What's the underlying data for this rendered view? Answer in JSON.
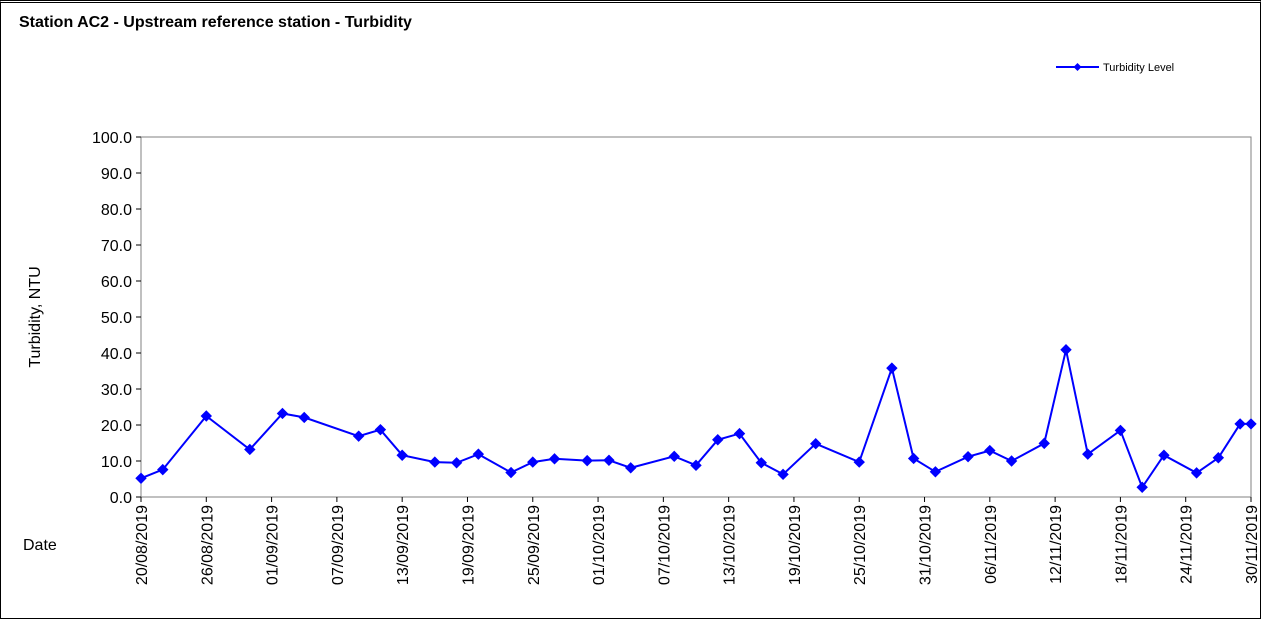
{
  "chart_data": {
    "type": "line",
    "title": "Station AC2 - Upstream reference station - Turbidity",
    "xlabel": "Date",
    "ylabel": "Turbidity, NTU",
    "ylim": [
      0,
      100
    ],
    "y_ticks": [
      "0.0",
      "10.0",
      "20.0",
      "30.0",
      "40.0",
      "50.0",
      "60.0",
      "70.0",
      "80.0",
      "90.0",
      "100.0"
    ],
    "x_ticks": [
      "20/08/2019",
      "26/08/2019",
      "01/09/2019",
      "07/09/2019",
      "13/09/2019",
      "19/09/2019",
      "25/09/2019",
      "01/10/2019",
      "07/10/2019",
      "13/10/2019",
      "19/10/2019",
      "25/10/2019",
      "31/10/2019",
      "06/11/2019",
      "12/11/2019",
      "18/11/2019",
      "24/11/2019",
      "30/11/2019"
    ],
    "xlim": [
      "20/08/2019",
      "30/11/2019"
    ],
    "grid": false,
    "legend_position": "top-right",
    "series": [
      {
        "name": "Turbidity Level",
        "color": "#0000FF",
        "marker": "diamond",
        "points": [
          {
            "x": "20/08/2019",
            "y": 5.2
          },
          {
            "x": "22/08/2019",
            "y": 7.6
          },
          {
            "x": "26/08/2019",
            "y": 22.5
          },
          {
            "x": "30/08/2019",
            "y": 13.2
          },
          {
            "x": "02/09/2019",
            "y": 23.2
          },
          {
            "x": "04/09/2019",
            "y": 22.1
          },
          {
            "x": "09/09/2019",
            "y": 16.9
          },
          {
            "x": "11/09/2019",
            "y": 18.7
          },
          {
            "x": "13/09/2019",
            "y": 11.6
          },
          {
            "x": "16/09/2019",
            "y": 9.7
          },
          {
            "x": "18/09/2019",
            "y": 9.5
          },
          {
            "x": "20/09/2019",
            "y": 11.9
          },
          {
            "x": "23/09/2019",
            "y": 6.8
          },
          {
            "x": "25/09/2019",
            "y": 9.7
          },
          {
            "x": "27/09/2019",
            "y": 10.6
          },
          {
            "x": "30/09/2019",
            "y": 10.1
          },
          {
            "x": "02/10/2019",
            "y": 10.2
          },
          {
            "x": "04/10/2019",
            "y": 8.1
          },
          {
            "x": "08/10/2019",
            "y": 11.3
          },
          {
            "x": "10/10/2019",
            "y": 8.8
          },
          {
            "x": "12/10/2019",
            "y": 15.9
          },
          {
            "x": "14/10/2019",
            "y": 17.6
          },
          {
            "x": "16/10/2019",
            "y": 9.5
          },
          {
            "x": "18/10/2019",
            "y": 6.3
          },
          {
            "x": "21/10/2019",
            "y": 14.8
          },
          {
            "x": "25/10/2019",
            "y": 9.7
          },
          {
            "x": "28/10/2019",
            "y": 35.8
          },
          {
            "x": "30/10/2019",
            "y": 10.7
          },
          {
            "x": "01/11/2019",
            "y": 7.0
          },
          {
            "x": "04/11/2019",
            "y": 11.2
          },
          {
            "x": "06/11/2019",
            "y": 12.9
          },
          {
            "x": "08/11/2019",
            "y": 10.0
          },
          {
            "x": "11/11/2019",
            "y": 14.9
          },
          {
            "x": "13/11/2019",
            "y": 40.9
          },
          {
            "x": "15/11/2019",
            "y": 11.9
          },
          {
            "x": "18/11/2019",
            "y": 18.5
          },
          {
            "x": "20/11/2019",
            "y": 2.7
          },
          {
            "x": "22/11/2019",
            "y": 11.6
          },
          {
            "x": "25/11/2019",
            "y": 6.7
          },
          {
            "x": "27/11/2019",
            "y": 10.9
          },
          {
            "x": "29/11/2019",
            "y": 20.3
          },
          {
            "x": "30/11/2019",
            "y": 20.3
          }
        ]
      }
    ]
  }
}
